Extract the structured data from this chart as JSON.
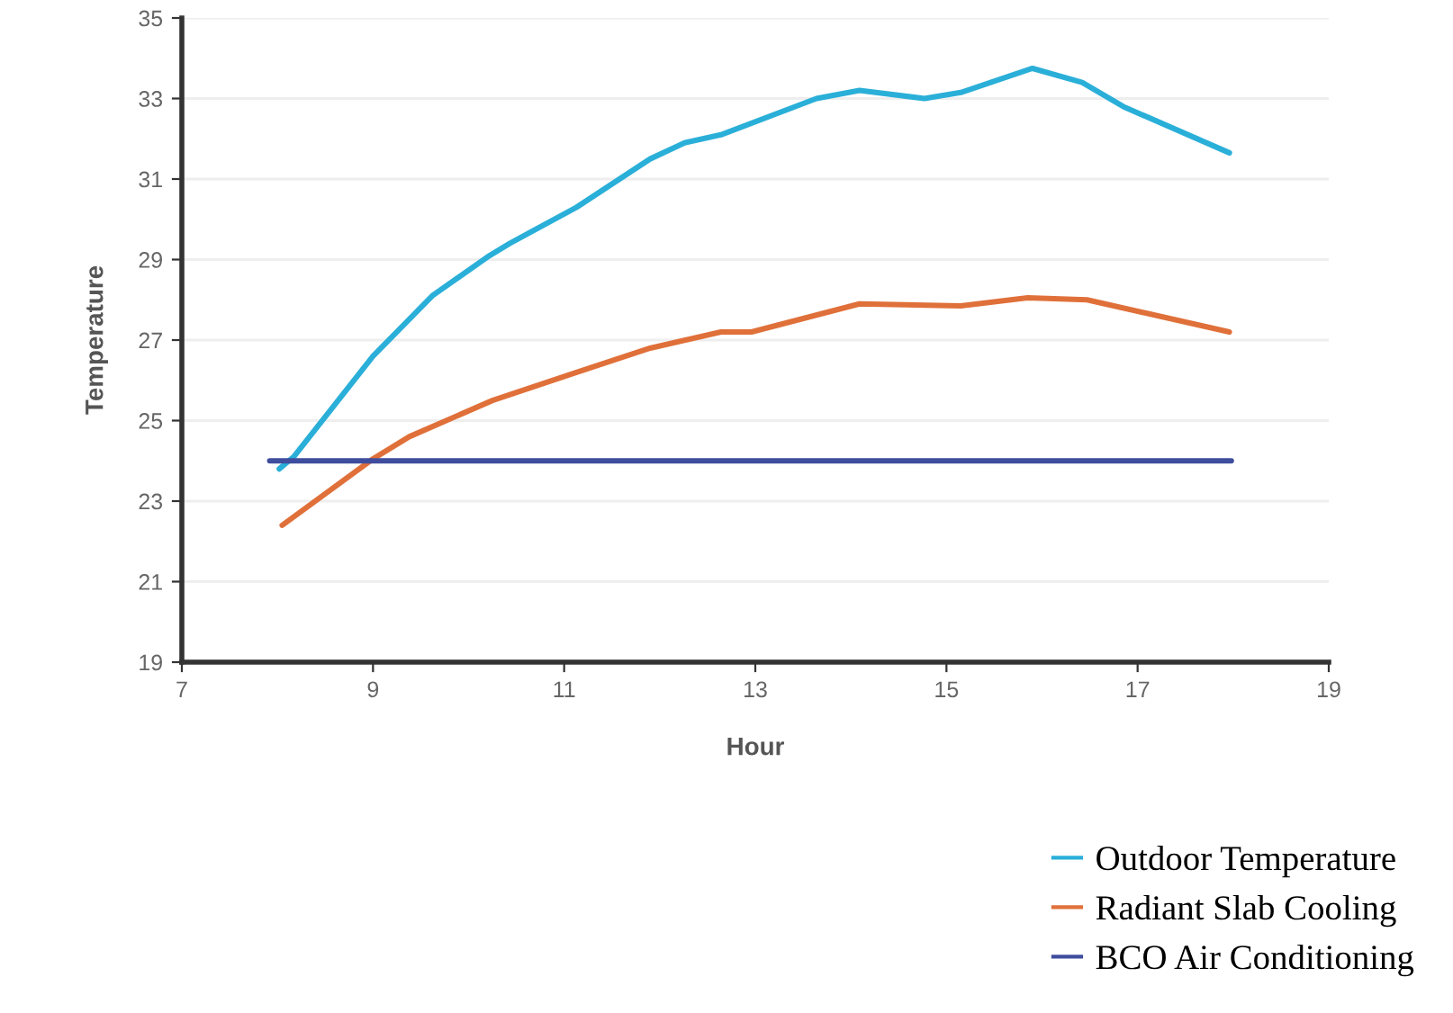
{
  "chart_data": {
    "type": "line",
    "xlabel": "Hour",
    "ylabel": "Temperature",
    "xlim": [
      7,
      19
    ],
    "xticks": [
      7,
      9,
      11,
      13,
      15,
      17,
      19
    ],
    "ylim": [
      19,
      35
    ],
    "yticks": [
      19,
      21,
      23,
      25,
      27,
      29,
      31,
      33,
      35
    ],
    "grid": "y",
    "legend": "bottom right",
    "line_style": "solid",
    "marker": "none",
    "series": [
      {
        "name": "Outdoor Temperature",
        "color": "#2aafd8",
        "x": [
          8.02,
          8.17,
          9,
          9.62,
          10.22,
          10.43,
          11.13,
          11.9,
          12.26,
          12.64,
          13.64,
          14.09,
          14.77,
          15.15,
          15.9,
          16.42,
          16.85,
          17.96
        ],
        "values": [
          23.8,
          24.1,
          26.6,
          28.1,
          29.1,
          29.4,
          30.3,
          31.5,
          31.9,
          32.1,
          33.0,
          33.2,
          33.0,
          33.15,
          33.75,
          33.4,
          32.8,
          31.65
        ]
      },
      {
        "name": "Radiant Slab Cooling",
        "color": "#e0703a",
        "x": [
          8.05,
          9,
          9.38,
          10.25,
          11.13,
          11.9,
          12.64,
          12.96,
          14.09,
          15.15,
          15.85,
          16.47,
          17.96
        ],
        "values": [
          22.4,
          24.05,
          24.6,
          25.5,
          26.2,
          26.8,
          27.2,
          27.2,
          27.9,
          27.85,
          28.05,
          28.0,
          27.2
        ]
      },
      {
        "name": "BCO Air Conditioning",
        "color": "#3f4d9e",
        "x": [
          7.92,
          17.98
        ],
        "values": [
          24,
          24
        ]
      }
    ]
  }
}
